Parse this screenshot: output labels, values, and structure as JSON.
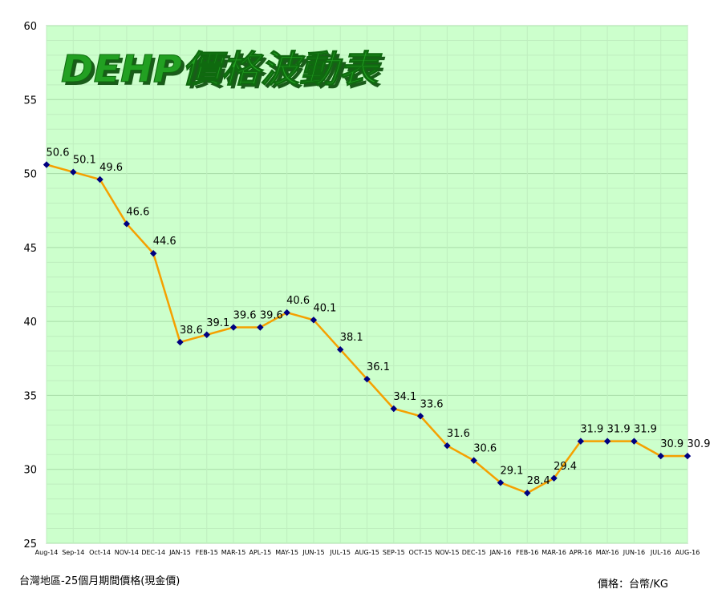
{
  "chart_data": {
    "type": "line",
    "title": "DEHP價格波動表",
    "categories": [
      "Aug-14",
      "Sep-14",
      "Oct-14",
      "NOV-14",
      "DEC-14",
      "JAN-15",
      "FEB-15",
      "MAR-15",
      "APL-15",
      "MAY-15",
      "JUN-15",
      "JUL-15",
      "AUG-15",
      "SEP-15",
      "OCT-15",
      "NOV-15",
      "DEC-15",
      "JAN-16",
      "FEB-16",
      "MAR-16",
      "APR-16",
      "MAY-16",
      "JUN-16",
      "JUL-16",
      "AUG-16"
    ],
    "series": [
      {
        "values": [
          50.6,
          50.1,
          49.6,
          46.6,
          44.6,
          38.6,
          39.1,
          39.6,
          39.6,
          40.6,
          40.1,
          38.1,
          36.1,
          34.1,
          33.6,
          31.6,
          30.6,
          29.1,
          28.4,
          29.4,
          31.9,
          31.9,
          31.9,
          30.9,
          30.9
        ],
        "line_color": "#f5a000",
        "marker_color": "#000080"
      }
    ],
    "data_labels": [
      "50.6",
      "50.1",
      "49.6",
      "46.6",
      "44.6",
      "38.6",
      "39.1",
      "39.6",
      "39.6",
      "40.6",
      "40.1",
      "38.1",
      "36.1",
      "34.1",
      "33.6",
      "31.6",
      "30.6",
      "29.1",
      "28.4",
      "29.4",
      "31.9",
      "31.9",
      "31.9",
      "30.9",
      "30.9"
    ],
    "ylim": [
      25,
      60
    ],
    "yticks": [
      "25",
      "30",
      "35",
      "40",
      "45",
      "50",
      "55",
      "60"
    ],
    "grid": true,
    "plot_background": "#ccffcc",
    "gridline_color": "#bfeebf",
    "title_color": "#22a022"
  },
  "footer": {
    "left_note": "台灣地區-25個月期間價格(現金價)",
    "right_note": "價格：台幣/KG"
  }
}
